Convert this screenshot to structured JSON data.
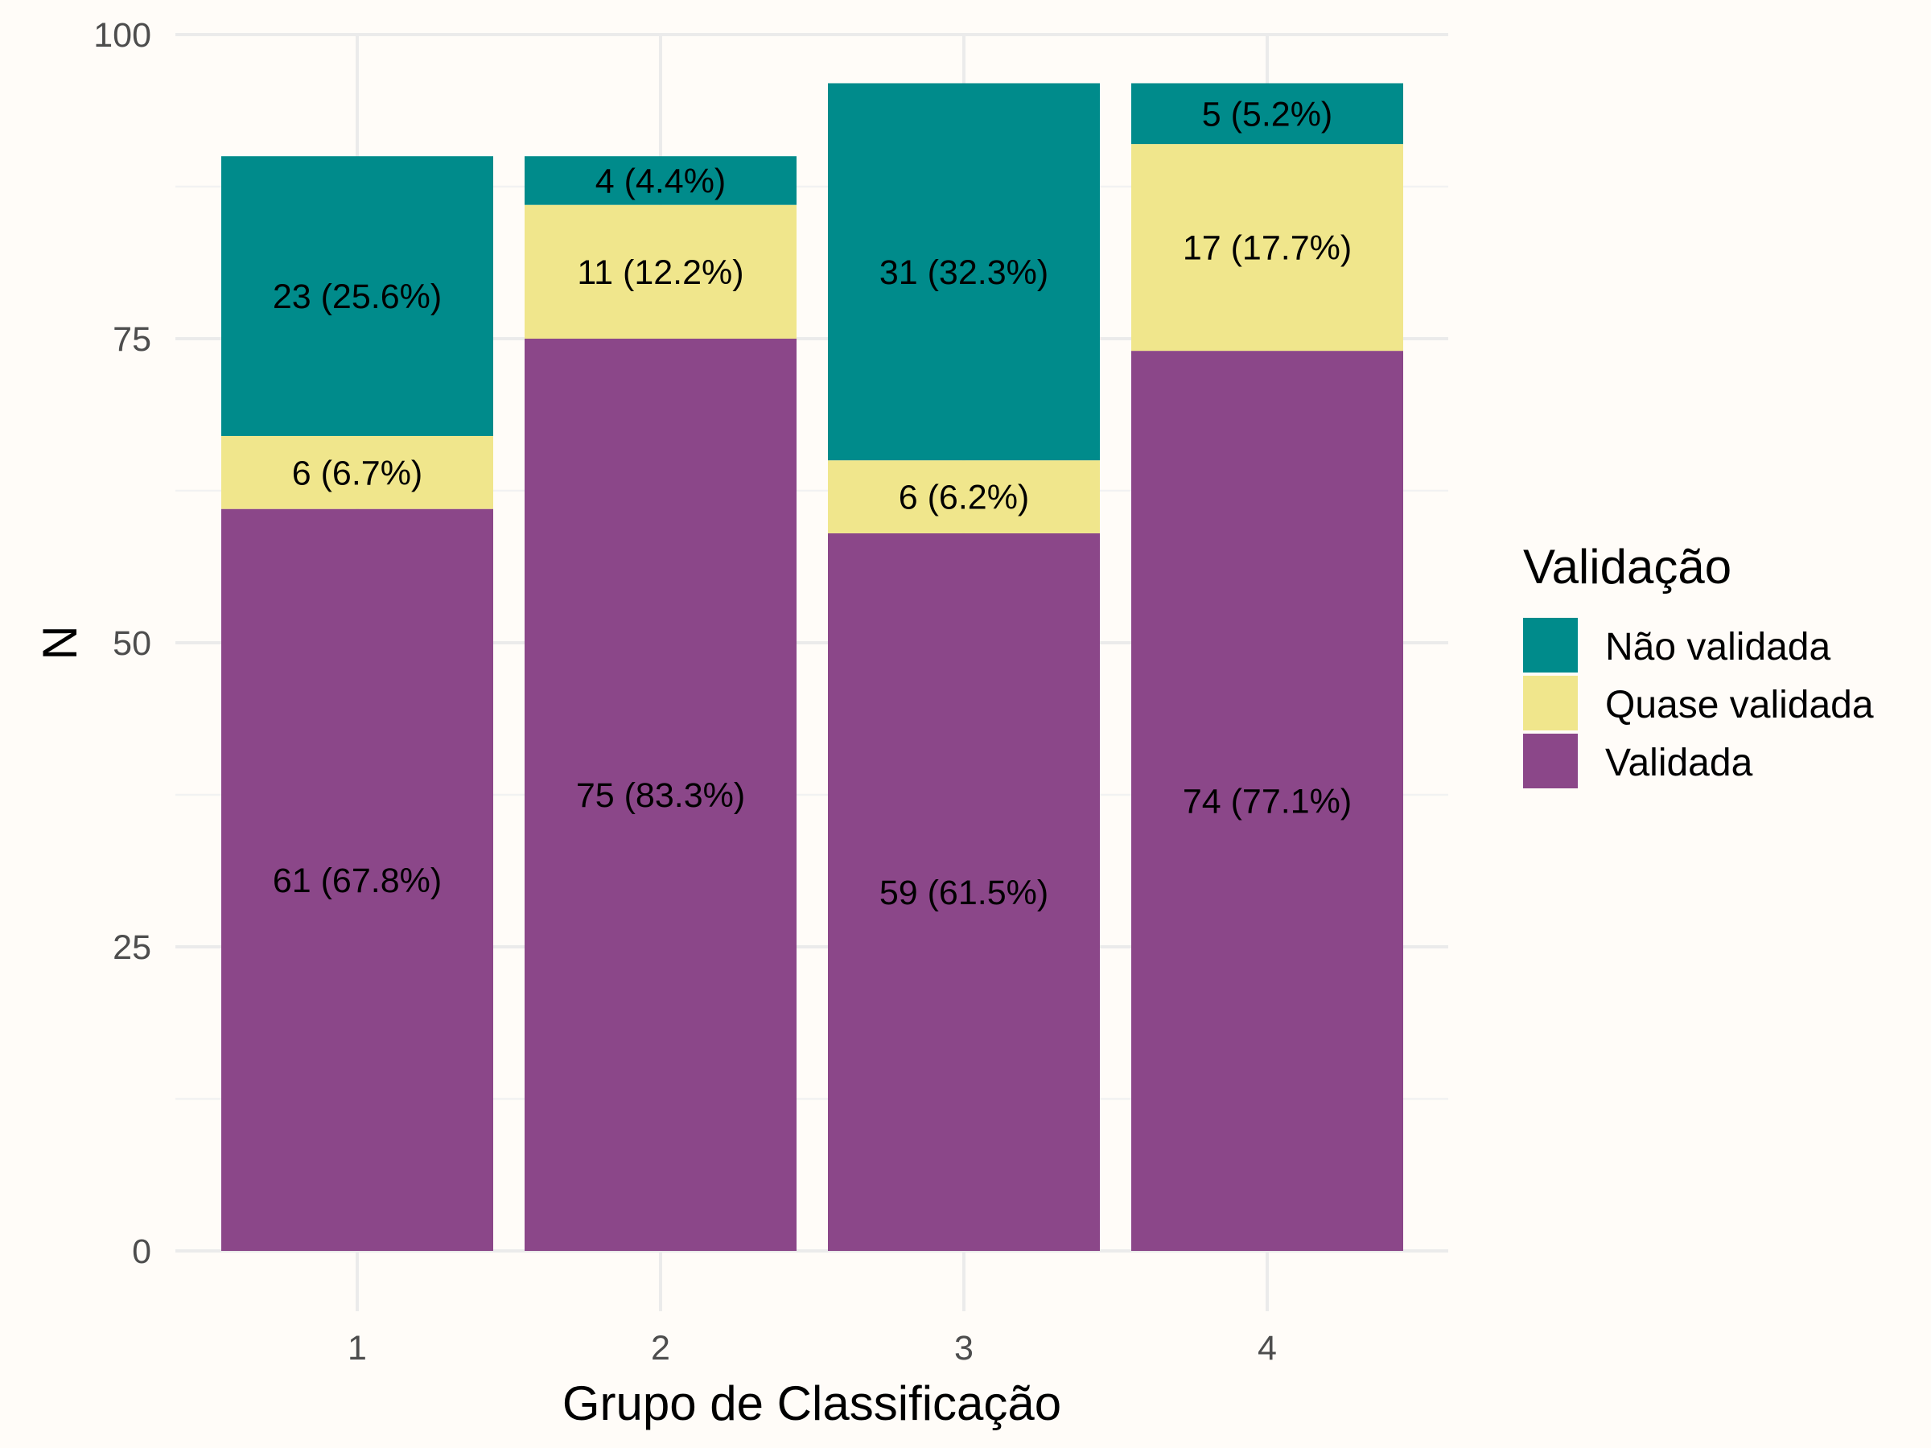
{
  "chart_data": {
    "type": "bar",
    "stacked": true,
    "title": "",
    "xlabel": "Grupo de Classificação",
    "ylabel": "N",
    "categories": [
      "1",
      "2",
      "3",
      "4"
    ],
    "ylim": [
      0,
      100
    ],
    "yticks": [
      0,
      25,
      50,
      75,
      100
    ],
    "grid": true,
    "legend": {
      "title": "Validação",
      "position": "right",
      "entries": [
        "Não validada",
        "Quase validada",
        "Validada"
      ]
    },
    "series": [
      {
        "name": "Validada",
        "color": "#8B4789",
        "values": [
          61,
          75,
          59,
          74
        ],
        "labels": [
          "61 (67.8%)",
          "75 (83.3%)",
          "59 (61.5%)",
          "74 (77.1%)"
        ]
      },
      {
        "name": "Quase validada",
        "color": "#F0E68C",
        "values": [
          6,
          11,
          6,
          17
        ],
        "labels": [
          "6 (6.7%)",
          "11 (12.2%)",
          "6 (6.2%)",
          "17 (17.7%)"
        ]
      },
      {
        "name": "Não validada",
        "color": "#008B8B",
        "values": [
          23,
          4,
          31,
          5
        ],
        "labels": [
          "23 (25.6%)",
          "4 (4.4%)",
          "31 (32.3%)",
          "5 (5.2%)"
        ]
      }
    ]
  }
}
